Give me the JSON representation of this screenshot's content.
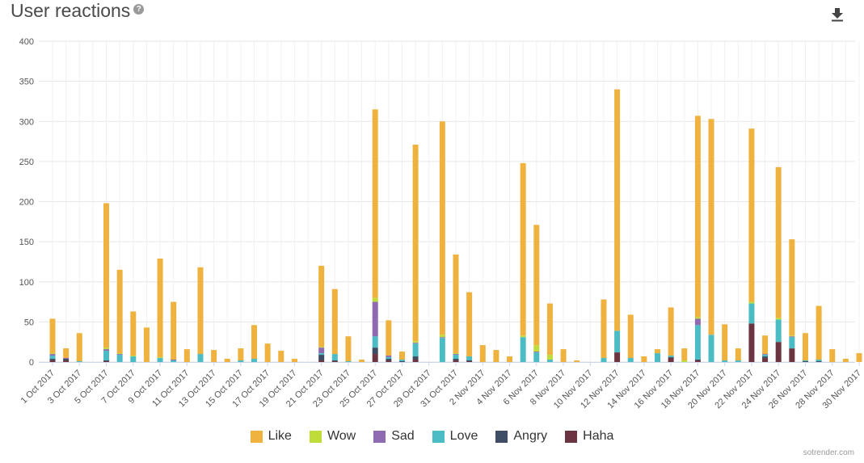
{
  "header": {
    "title": "User reactions",
    "help_glyph": "?",
    "download_icon": "download-icon"
  },
  "credit": "sotrender.com",
  "colors": {
    "Like": "#efb23e",
    "Wow": "#bedd3a",
    "Sad": "#8e6ab0",
    "Love": "#4bbcc4",
    "Angry": "#3e4c64",
    "Haha": "#6a3540"
  },
  "chart_data": {
    "type": "bar",
    "stacked": true,
    "title": "User reactions",
    "xlabel": "",
    "ylabel": "",
    "ylim": [
      0,
      400
    ],
    "yticks": [
      0,
      50,
      100,
      150,
      200,
      250,
      300,
      350,
      400
    ],
    "grid": true,
    "legend_position": "bottom",
    "categories": [
      "1 Oct 2017",
      "2 Oct 2017",
      "3 Oct 2017",
      "4 Oct 2017",
      "5 Oct 2017",
      "6 Oct 2017",
      "7 Oct 2017",
      "8 Oct 2017",
      "9 Oct 2017",
      "10 Oct 2017",
      "11 Oct 2017",
      "12 Oct 2017",
      "13 Oct 2017",
      "14 Oct 2017",
      "15 Oct 2017",
      "16 Oct 2017",
      "17 Oct 2017",
      "18 Oct 2017",
      "19 Oct 2017",
      "20 Oct 2017",
      "21 Oct 2017",
      "22 Oct 2017",
      "23 Oct 2017",
      "24 Oct 2017",
      "25 Oct 2017",
      "26 Oct 2017",
      "27 Oct 2017",
      "28 Oct 2017",
      "29 Oct 2017",
      "30 Oct 2017",
      "31 Oct 2017",
      "1 Nov 2017",
      "2 Nov 2017",
      "3 Nov 2017",
      "4 Nov 2017",
      "5 Nov 2017",
      "6 Nov 2017",
      "7 Nov 2017",
      "8 Nov 2017",
      "9 Nov 2017",
      "10 Nov 2017",
      "11 Nov 2017",
      "12 Nov 2017",
      "13 Nov 2017",
      "14 Nov 2017",
      "15 Nov 2017",
      "16 Nov 2017",
      "17 Nov 2017",
      "18 Nov 2017",
      "19 Nov 2017",
      "20 Nov 2017",
      "21 Nov 2017",
      "22 Nov 2017",
      "23 Nov 2017",
      "24 Nov 2017",
      "25 Nov 2017",
      "26 Nov 2017",
      "27 Nov 2017",
      "28 Nov 2017",
      "29 Nov 2017",
      "30 Nov 2017"
    ],
    "tick_labels": [
      "1 Oct 2017",
      "3 Oct 2017",
      "5 Oct 2017",
      "7 Oct 2017",
      "9 Oct 2017",
      "11 Oct 2017",
      "13 Oct 2017",
      "15 Oct 2017",
      "17 Oct 2017",
      "19 Oct 2017",
      "21 Oct 2017",
      "23 Oct 2017",
      "25 Oct 2017",
      "27 Oct 2017",
      "29 Oct 2017",
      "31 Oct 2017",
      "2 Nov 2017",
      "4 Nov 2017",
      "6 Nov 2017",
      "8 Nov 2017",
      "10 Nov 2017",
      "12 Nov 2017",
      "14 Nov 2017",
      "16 Nov 2017",
      "18 Nov 2017",
      "20 Nov 2017",
      "22 Nov 2017",
      "24 Nov 2017",
      "26 Nov 2017",
      "28 Nov 2017",
      "30 Nov 2017"
    ],
    "series": [
      {
        "name": "Haha",
        "values": [
          2,
          2,
          0,
          0,
          1,
          0,
          0,
          0,
          0,
          0,
          0,
          0,
          0,
          0,
          0,
          0,
          0,
          0,
          0,
          0,
          2,
          1,
          0,
          0,
          10,
          2,
          0,
          3,
          0,
          0,
          2,
          1,
          0,
          0,
          0,
          0,
          0,
          0,
          0,
          0,
          0,
          0,
          12,
          0,
          0,
          0,
          5,
          0,
          2,
          0,
          0,
          0,
          48,
          5,
          25,
          17,
          0,
          0,
          0,
          0,
          0
        ]
      },
      {
        "name": "Angry",
        "values": [
          2,
          2,
          0,
          0,
          1,
          0,
          0,
          0,
          0,
          0,
          0,
          0,
          0,
          0,
          0,
          0,
          0,
          0,
          0,
          0,
          7,
          1,
          0,
          0,
          8,
          2,
          1,
          4,
          0,
          0,
          2,
          1,
          0,
          0,
          0,
          0,
          0,
          0,
          0,
          0,
          0,
          0,
          0,
          0,
          0,
          0,
          1,
          0,
          1,
          0,
          0,
          0,
          0,
          2,
          0,
          0,
          1,
          1,
          0,
          0,
          0
        ]
      },
      {
        "name": "Love",
        "values": [
          4,
          0,
          1,
          0,
          12,
          9,
          7,
          0,
          5,
          2,
          0,
          10,
          0,
          0,
          2,
          4,
          0,
          0,
          0,
          0,
          2,
          8,
          1,
          0,
          14,
          2,
          2,
          16,
          0,
          30,
          5,
          5,
          0,
          0,
          0,
          31,
          12,
          3,
          0,
          0,
          0,
          5,
          27,
          5,
          0,
          11,
          2,
          0,
          43,
          34,
          2,
          2,
          25,
          2,
          28,
          14,
          1,
          2,
          0,
          0,
          0
        ]
      },
      {
        "name": "Sad",
        "values": [
          2,
          1,
          0,
          0,
          2,
          1,
          0,
          0,
          0,
          1,
          0,
          0,
          0,
          0,
          0,
          0,
          0,
          0,
          0,
          0,
          7,
          0,
          0,
          0,
          43,
          2,
          0,
          1,
          0,
          1,
          1,
          0,
          0,
          0,
          0,
          0,
          1,
          0,
          0,
          0,
          0,
          0,
          0,
          0,
          0,
          0,
          0,
          0,
          8,
          0,
          0,
          0,
          0,
          1,
          0,
          1,
          0,
          0,
          0,
          0,
          0
        ]
      },
      {
        "name": "Wow",
        "values": [
          1,
          0,
          0,
          0,
          2,
          1,
          1,
          0,
          1,
          0,
          0,
          0,
          0,
          0,
          0,
          0,
          0,
          0,
          0,
          0,
          1,
          0,
          0,
          0,
          5,
          0,
          0,
          2,
          0,
          3,
          1,
          0,
          0,
          0,
          0,
          2,
          8,
          6,
          0,
          0,
          0,
          0,
          0,
          0,
          0,
          0,
          0,
          2,
          2,
          0,
          0,
          0,
          2,
          0,
          2,
          1,
          0,
          0,
          0,
          0,
          0
        ]
      },
      {
        "name": "Like",
        "values": [
          43,
          12,
          35,
          0,
          180,
          104,
          55,
          43,
          123,
          72,
          16,
          108,
          15,
          4,
          15,
          42,
          23,
          14,
          4,
          0,
          101,
          81,
          31,
          3,
          235,
          44,
          10,
          245,
          0,
          266,
          123,
          80,
          21,
          15,
          7,
          215,
          150,
          64,
          16,
          2,
          0,
          73,
          301,
          54,
          7,
          5,
          60,
          15,
          251,
          269,
          45,
          15,
          216,
          23,
          188,
          120,
          34,
          67,
          16,
          4,
          11
        ]
      }
    ]
  }
}
